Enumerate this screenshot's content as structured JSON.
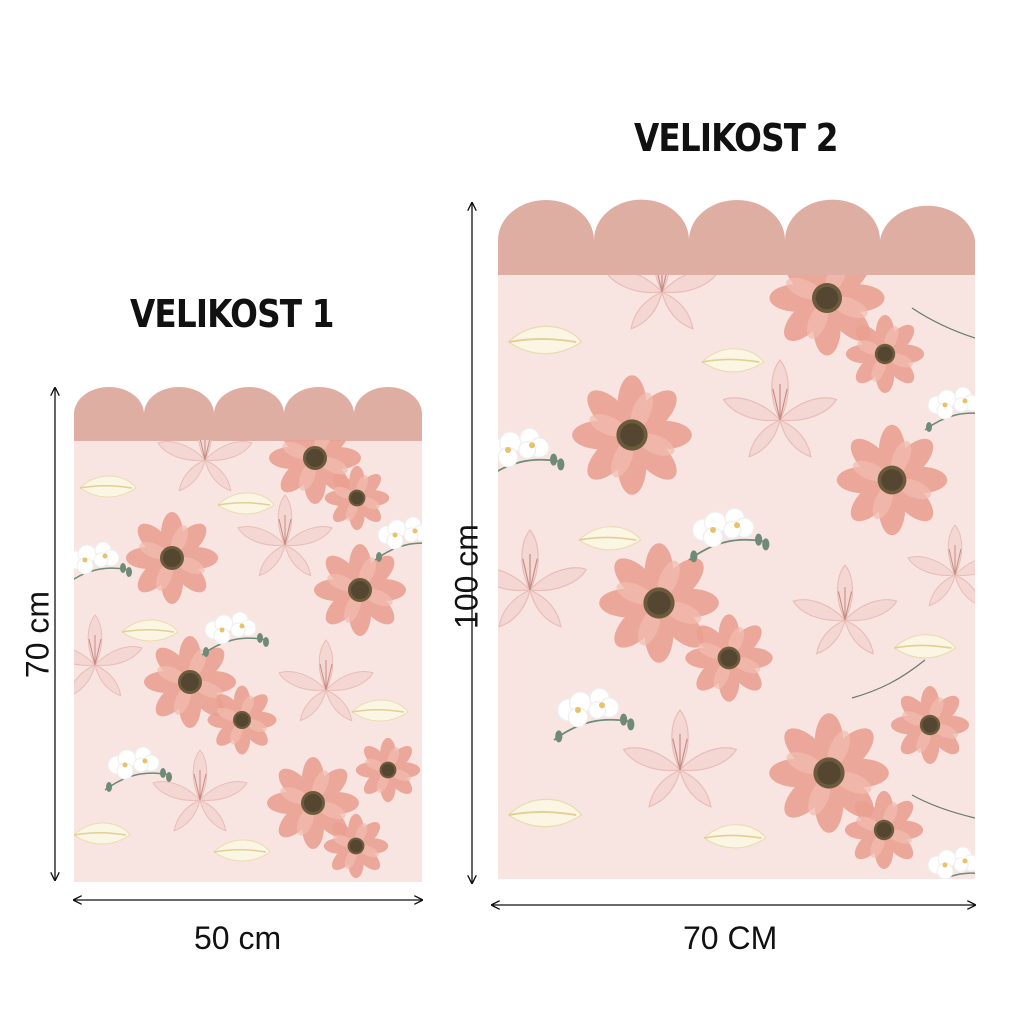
{
  "panels": [
    {
      "title": "VELIKOST 1",
      "width_label": "50 cm",
      "height_label": "70 cm"
    },
    {
      "title": "VELIKOST 2",
      "width_label": "70 CM",
      "height_label": "100 cm"
    }
  ],
  "colors": {
    "scallop": "#dfaea3",
    "background": "#f8e5e1",
    "cosmos": "#eaa192",
    "cosmos_center": "#6b5a3c",
    "lily": "#f4d6d3",
    "orchid": "#ffffff",
    "leaf": "#6f8a76",
    "arrow": "#111111"
  },
  "icons": [
    "cosmos-flower-icon",
    "lily-flower-icon",
    "orchid-flower-icon",
    "calla-leaf-icon"
  ]
}
